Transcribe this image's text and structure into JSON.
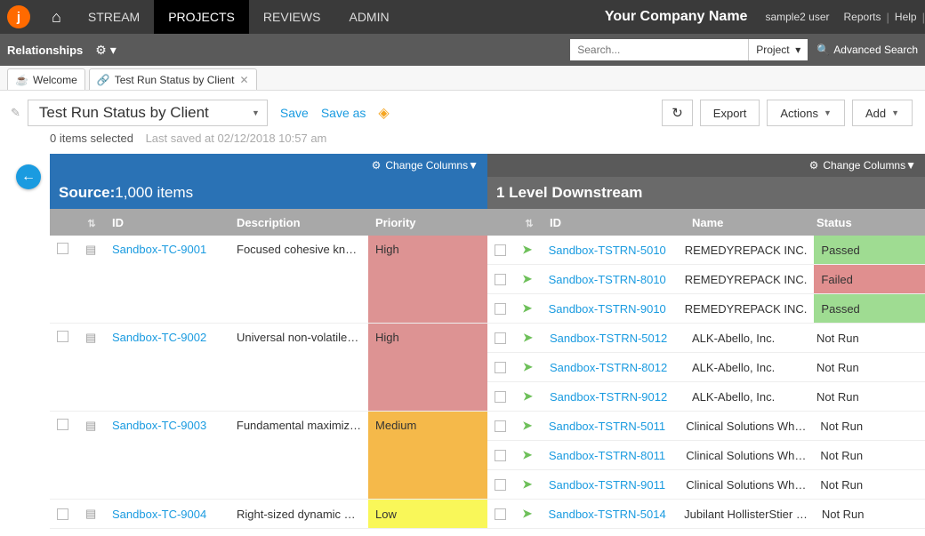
{
  "topnav": {
    "logo_letter": "j",
    "items": [
      "STREAM",
      "PROJECTS",
      "REVIEWS",
      "ADMIN"
    ],
    "active_index": 1,
    "company": "Your Company Name",
    "user": "sample2 user",
    "links": [
      "Reports",
      "Help"
    ]
  },
  "secondbar": {
    "relationships": "Relationships",
    "search_placeholder": "Search...",
    "scope": "Project",
    "advanced": "Advanced Search"
  },
  "tabs": [
    {
      "icon": "☕",
      "label": "Welcome",
      "closable": false
    },
    {
      "icon": "🔗",
      "label": "Test Run Status by Client",
      "closable": true
    }
  ],
  "toolbar": {
    "title": "Test Run Status by Client",
    "save": "Save",
    "save_as": "Save as",
    "export": "Export",
    "actions": "Actions",
    "add": "Add"
  },
  "statusline": {
    "items_selected": "0 items selected",
    "last_saved": "Last saved at 02/12/2018 10:57 am"
  },
  "panels": {
    "change_columns": "Change Columns",
    "left": {
      "title_bold": "Source:",
      "title_rest": " 1,000 items",
      "columns": {
        "id": "ID",
        "desc": "Description",
        "prio": "Priority"
      },
      "rows": [
        {
          "id": "Sandbox-TC-9001",
          "desc": "Focused cohesive kn…",
          "prio": "High",
          "span": 3
        },
        {
          "id": "Sandbox-TC-9002",
          "desc": "Universal non-volatile…",
          "prio": "High",
          "span": 3
        },
        {
          "id": "Sandbox-TC-9003",
          "desc": "Fundamental maximiz…",
          "prio": "Medium",
          "span": 3
        },
        {
          "id": "Sandbox-TC-9004",
          "desc": "Right-sized dynamic …",
          "prio": "Low",
          "span": 1
        }
      ]
    },
    "right": {
      "title": "1 Level Downstream",
      "columns": {
        "id": "ID",
        "name": "Name",
        "status": "Status"
      },
      "rows": [
        {
          "id": "Sandbox-TSTRN-5010",
          "name": "REMEDYREPACK INC.",
          "status": "Passed"
        },
        {
          "id": "Sandbox-TSTRN-8010",
          "name": "REMEDYREPACK INC.",
          "status": "Failed"
        },
        {
          "id": "Sandbox-TSTRN-9010",
          "name": "REMEDYREPACK INC.",
          "status": "Passed"
        },
        {
          "id": "Sandbox-TSTRN-5012",
          "name": "ALK-Abello, Inc.",
          "status": "Not Run"
        },
        {
          "id": "Sandbox-TSTRN-8012",
          "name": "ALK-Abello, Inc.",
          "status": "Not Run"
        },
        {
          "id": "Sandbox-TSTRN-9012",
          "name": "ALK-Abello, Inc.",
          "status": "Not Run"
        },
        {
          "id": "Sandbox-TSTRN-5011",
          "name": "Clinical Solutions Wh…",
          "status": "Not Run"
        },
        {
          "id": "Sandbox-TSTRN-8011",
          "name": "Clinical Solutions Wh…",
          "status": "Not Run"
        },
        {
          "id": "Sandbox-TSTRN-9011",
          "name": "Clinical Solutions Wh…",
          "status": "Not Run"
        },
        {
          "id": "Sandbox-TSTRN-5014",
          "name": "Jubilant HollisterStier …",
          "status": "Not Run"
        }
      ]
    }
  },
  "colors": {
    "accent_blue": "#2a72b5",
    "link_blue": "#1a9be0",
    "orange": "#ff6a00",
    "prio_high": "#dd9393",
    "prio_med": "#f5b94a",
    "prio_low": "#f9f759",
    "status_pass": "#9fdc92",
    "status_fail": "#e08f8f"
  }
}
